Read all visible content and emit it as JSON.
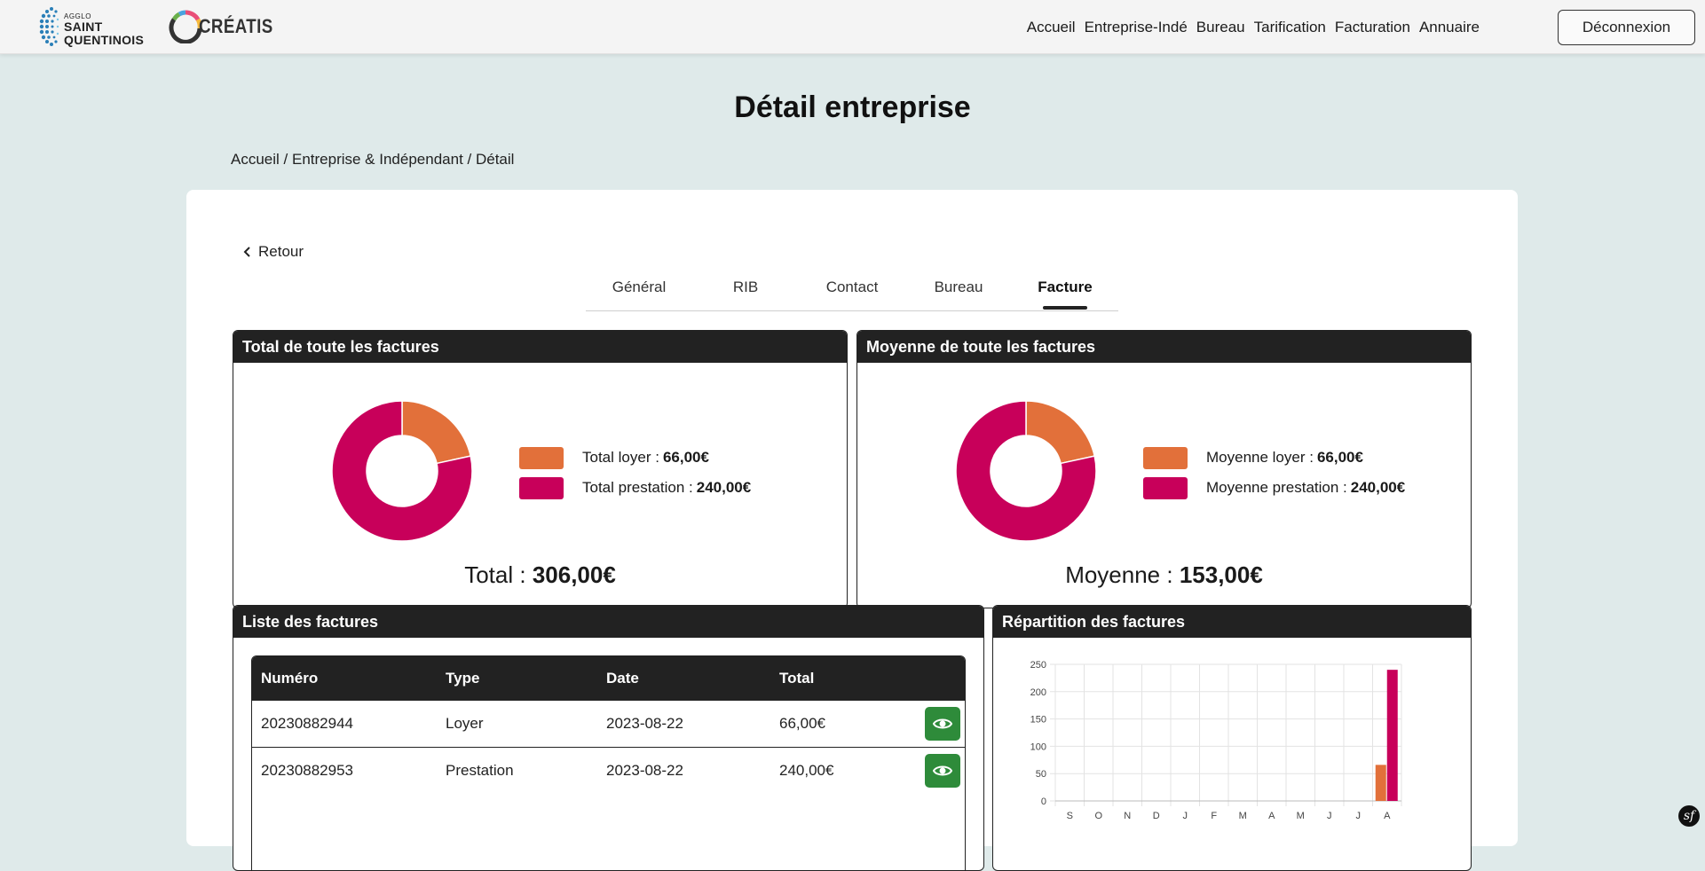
{
  "header": {
    "logo1": {
      "small": "AGGLO",
      "line1": "SAINT",
      "line2": "QUENTINOIS"
    },
    "logo2": {
      "name": "CRÉATIS"
    },
    "nav": [
      "Accueil",
      "Entreprise-Indé",
      "Bureau",
      "Tarification",
      "Facturation",
      "Annuaire"
    ],
    "logout_label": "Déconnexion"
  },
  "page_title": "Détail entreprise",
  "breadcrumb": {
    "home": "Accueil",
    "section": "Entreprise & Indépendant",
    "current": "Détail",
    "separator": " / "
  },
  "back_label": "Retour",
  "tabs": [
    {
      "label": "Général",
      "active": false
    },
    {
      "label": "RIB",
      "active": false
    },
    {
      "label": "Contact",
      "active": false
    },
    {
      "label": "Bureau",
      "active": false
    },
    {
      "label": "Facture",
      "active": true
    }
  ],
  "colors": {
    "loyer": "#e2703a",
    "prestation": "#c8005a",
    "dark": "#222222",
    "green": "#2e8b3a"
  },
  "total_panel": {
    "title": "Total de toute les factures",
    "legend_loyer_label": "Total loyer :",
    "legend_loyer_value": "66,00€",
    "legend_prestation_label": "Total prestation :",
    "legend_prestation_value": "240,00€",
    "summary_label": "Total :",
    "summary_value": "306,00€"
  },
  "average_panel": {
    "title": "Moyenne de toute les factures",
    "legend_loyer_label": "Moyenne loyer :",
    "legend_loyer_value": "66,00€",
    "legend_prestation_label": "Moyenne prestation :",
    "legend_prestation_value": "240,00€",
    "summary_label": "Moyenne :",
    "summary_value": "153,00€"
  },
  "invoice_list": {
    "title": "Liste des factures",
    "columns": [
      "Numéro",
      "Type",
      "Date",
      "Total"
    ],
    "rows": [
      {
        "numero": "20230882944",
        "type": "Loyer",
        "date": "2023-08-22",
        "total": "66,00€"
      },
      {
        "numero": "20230882953",
        "type": "Prestation",
        "date": "2023-08-22",
        "total": "240,00€"
      }
    ]
  },
  "repartition_panel": {
    "title": "Répartition des factures"
  },
  "chart_data": [
    {
      "type": "pie",
      "variant": "donut",
      "labels": [
        "loyer",
        "prestation"
      ],
      "values": [
        66,
        240
      ]
    },
    {
      "type": "pie",
      "variant": "donut",
      "labels": [
        "loyer",
        "prestation"
      ],
      "values": [
        66,
        240
      ]
    },
    {
      "type": "bar",
      "categories": [
        "S",
        "O",
        "N",
        "D",
        "J",
        "F",
        "M",
        "A",
        "M",
        "J",
        "J",
        "A"
      ],
      "series": [
        {
          "values": [
            0,
            0,
            0,
            0,
            0,
            0,
            0,
            0,
            0,
            0,
            0,
            66
          ]
        },
        {
          "values": [
            0,
            0,
            0,
            0,
            0,
            0,
            0,
            0,
            0,
            0,
            0,
            240
          ]
        }
      ],
      "yticks": [
        0,
        50,
        100,
        150,
        200,
        250
      ],
      "ylim": [
        0,
        250
      ],
      "grid": true
    }
  ]
}
